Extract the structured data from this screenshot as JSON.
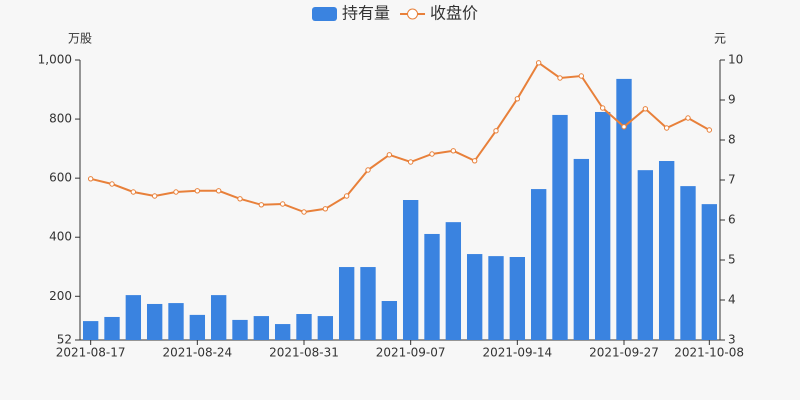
{
  "chart_data": {
    "type": "bar-line",
    "categories": [
      "2021-08-17",
      null,
      null,
      null,
      null,
      "2021-08-24",
      null,
      null,
      null,
      null,
      "2021-08-31",
      null,
      null,
      null,
      null,
      "2021-09-07",
      null,
      null,
      null,
      null,
      "2021-09-14",
      null,
      null,
      null,
      null,
      "2021-09-27",
      null,
      null,
      null,
      "2021-10-08"
    ],
    "series": [
      {
        "name": "持有量",
        "type": "bar",
        "color": "#3a83e0",
        "values": [
          116,
          130,
          204,
          174,
          177,
          137,
          204,
          120,
          133,
          106,
          140,
          133,
          299,
          299,
          184,
          526,
          411,
          451,
          343,
          336,
          333,
          563,
          814,
          665,
          824,
          936,
          627,
          658,
          573,
          512
        ]
      },
      {
        "name": "收盘价",
        "type": "line",
        "axis": "y2",
        "color": "#e8803a",
        "values": [
          7.03,
          6.9,
          6.7,
          6.6,
          6.7,
          6.73,
          6.73,
          6.53,
          6.38,
          6.4,
          6.2,
          6.28,
          6.6,
          7.25,
          7.63,
          7.45,
          7.65,
          7.73,
          7.48,
          8.23,
          9.03,
          9.93,
          9.55,
          9.6,
          8.8,
          8.33,
          8.78,
          8.3,
          8.55,
          8.25
        ]
      }
    ],
    "y_unit": "万股",
    "y2_unit": "元",
    "ylim": [
      52,
      1000
    ],
    "yticks": [
      52,
      200,
      400,
      600,
      800,
      {
        "value": 1000,
        "label": "1,000"
      }
    ],
    "y2lim": [
      3,
      10
    ],
    "y2ticks": [
      3,
      4,
      5,
      6,
      7,
      8,
      9,
      10
    ]
  }
}
